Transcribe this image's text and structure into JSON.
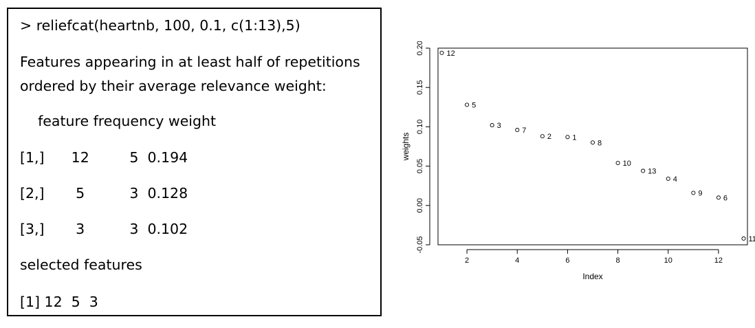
{
  "console": {
    "command": "> reliefcat(heartnb, 100, 0.1, c(1:13),5)",
    "intro_line1": "Features appearing in at least half of repetitions",
    "intro_line2": "ordered by their average relevance weight:",
    "table_header": "    feature frequency weight",
    "rows": [
      "[1,]      12         5  0.194",
      "[2,]       5          3  0.128",
      "[3,]       3          3  0.102"
    ],
    "selected_label": "selected features",
    "selected_value": "[1] 12  5  3"
  },
  "chart_data": {
    "type": "scatter",
    "xlabel": "Index",
    "ylabel": "weights",
    "xlim": [
      0.85,
      13.15
    ],
    "ylim": [
      -0.05,
      0.2
    ],
    "xticks": [
      2,
      4,
      6,
      8,
      10,
      12
    ],
    "yticks": [
      -0.05,
      0.0,
      0.05,
      0.1,
      0.15,
      0.2
    ],
    "ytick_labels": [
      "-0.05",
      "0.00",
      "0.05",
      "0.10",
      "0.15",
      "0.20"
    ],
    "points": [
      {
        "x": 1,
        "y": 0.194,
        "label": "12"
      },
      {
        "x": 2,
        "y": 0.128,
        "label": "5"
      },
      {
        "x": 3,
        "y": 0.102,
        "label": "3"
      },
      {
        "x": 4,
        "y": 0.096,
        "label": "7"
      },
      {
        "x": 5,
        "y": 0.088,
        "label": "2"
      },
      {
        "x": 6,
        "y": 0.087,
        "label": "1"
      },
      {
        "x": 7,
        "y": 0.08,
        "label": "8"
      },
      {
        "x": 8,
        "y": 0.054,
        "label": "10"
      },
      {
        "x": 9,
        "y": 0.044,
        "label": "13"
      },
      {
        "x": 10,
        "y": 0.034,
        "label": "4"
      },
      {
        "x": 11,
        "y": 0.016,
        "label": "9"
      },
      {
        "x": 12,
        "y": 0.01,
        "label": "6"
      },
      {
        "x": 13,
        "y": -0.042,
        "label": "11"
      }
    ],
    "grid": false,
    "legend": "none"
  }
}
